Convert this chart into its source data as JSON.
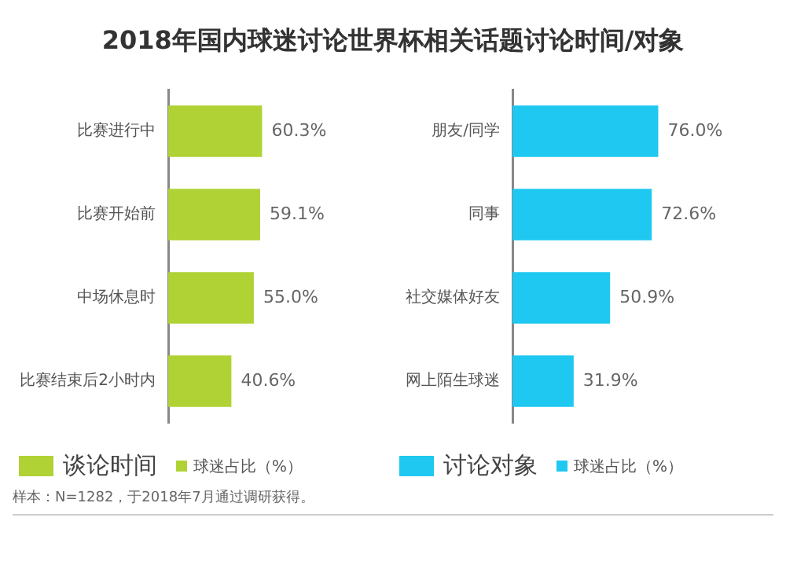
{
  "chart_data": [
    {
      "type": "bar",
      "orientation": "horizontal",
      "title": "2018年国内球迷讨论世界杯相关话题讨论时间/对象",
      "categories": [
        "比赛进行中",
        "比赛开始前",
        "中场休息时",
        "比赛结束后2小时内"
      ],
      "legend_title": "谈论时间",
      "series": [
        {
          "name": "球迷占比（%）",
          "color": "#b0d234",
          "values": [
            60.3,
            59.1,
            55.0,
            40.6
          ],
          "value_labels": [
            "60.3%",
            "59.1%",
            "55.0%",
            "40.6%"
          ]
        }
      ],
      "legend": "bottom",
      "grid": false,
      "tick_labels": "y",
      "annotations": [
        "样本：N=1282，于2018年7月通过调研获得。"
      ]
    },
    {
      "type": "bar",
      "orientation": "horizontal",
      "categories": [
        "朋友/同学",
        "同事",
        "社交媒体好友",
        "网上陌生球迷"
      ],
      "legend_title": "讨论对象",
      "series": [
        {
          "name": "球迷占比（%）",
          "color": "#1ec8f0",
          "values": [
            76.0,
            72.6,
            50.9,
            31.9
          ],
          "value_labels": [
            "76.0%",
            "72.6%",
            "50.9%",
            "31.9%"
          ]
        }
      ],
      "legend": "bottom",
      "grid": false,
      "tick_labels": "y"
    }
  ]
}
